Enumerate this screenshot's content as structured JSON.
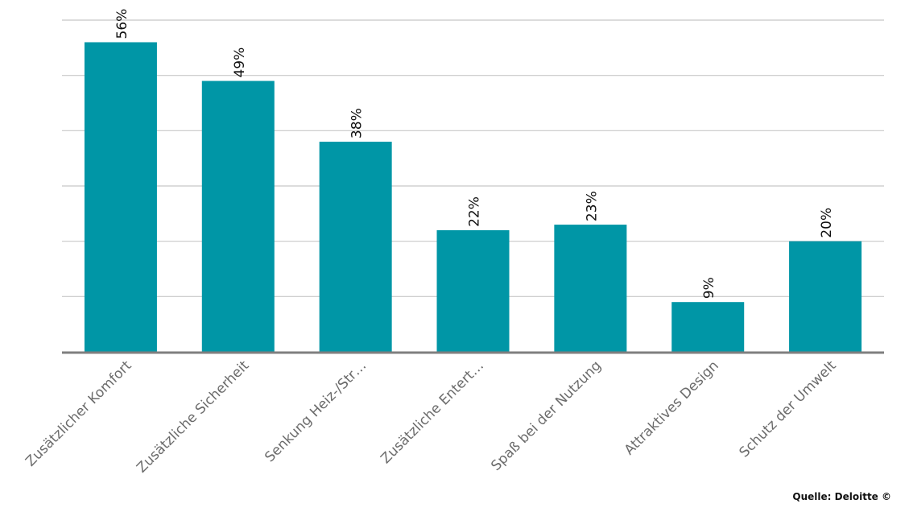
{
  "chart_data": {
    "type": "bar",
    "categories": [
      "Zusätzlicher Komfort",
      "Zusätzliche Sicherheit",
      "Senkung Heiz-/Str…",
      "Zusätzliche Entert…",
      "Spaß bei der Nutzung",
      "Attraktives Design",
      "Schutz der Umwelt"
    ],
    "values": [
      56,
      49,
      38,
      22,
      23,
      9,
      20
    ],
    "value_labels": [
      "56%",
      "49%",
      "38%",
      "22%",
      "23%",
      "9%",
      "20%"
    ],
    "ylim": [
      0,
      60
    ],
    "grid": true,
    "bar_color": "#0096a6",
    "grid_color": "#c8c8c8",
    "axis_color": "#7f7f7f",
    "label_color": "#6b6b6b"
  },
  "source": "Quelle: Deloitte ©"
}
